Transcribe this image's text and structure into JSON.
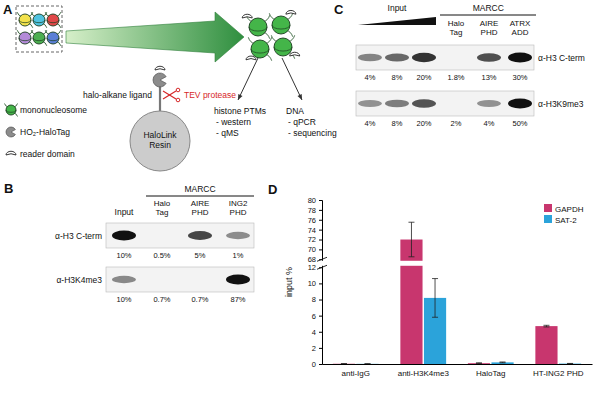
{
  "figure_a": {
    "label": "A",
    "legend": {
      "mononucleosome": "mononucleosome",
      "halotag": "HO₂-HaloTag",
      "reader": "reader domain"
    },
    "ligand": "halo-alkane ligand",
    "protease": "TEV protease",
    "resin": "HaloLink Resin",
    "outputs": [
      {
        "title": "histone PTMs",
        "items": [
          "- western",
          "- qMS"
        ]
      },
      {
        "title": "DNA",
        "items": [
          "- qPCR",
          "- sequencing"
        ]
      }
    ]
  },
  "blot_b": {
    "label": "B",
    "input_header": "Input",
    "group_header": "MARCC",
    "lanes": [
      "Halo Tag",
      "AIRE PHD",
      "ING2 PHD"
    ],
    "rows": [
      {
        "antibody": "α-H3 C-term",
        "input_values": [
          10
        ],
        "input_labels": [
          "10%"
        ],
        "values": [
          0.5,
          5,
          1
        ],
        "value_labels": [
          "0.5%",
          "5%",
          "1%"
        ]
      },
      {
        "antibody": "α-H3K4me3",
        "input_values": [
          10
        ],
        "input_labels": [
          "10%"
        ],
        "values": [
          0.7,
          0.7,
          87
        ],
        "value_labels": [
          "0.7%",
          "0.7%",
          "87%"
        ]
      }
    ]
  },
  "blot_c": {
    "label": "C",
    "input_header": "Input",
    "group_header": "MARCC",
    "lanes": [
      "Halo Tag",
      "AIRE PHD",
      "ATRX ADD"
    ],
    "rows": [
      {
        "antibody": "α-H3 C-term",
        "input_values": [
          4,
          8,
          20
        ],
        "input_labels": [
          "4%",
          "8%",
          "20%"
        ],
        "values": [
          1.8,
          13,
          30
        ],
        "value_labels": [
          "1.8%",
          "13%",
          "30%"
        ]
      },
      {
        "antibody": "α-H3K9me3",
        "input_values": [
          4,
          8,
          20
        ],
        "input_labels": [
          "4%",
          "8%",
          "20%"
        ],
        "values": [
          2,
          4,
          50
        ],
        "value_labels": [
          "2%",
          "4%",
          "50%"
        ]
      }
    ]
  },
  "chart_data": {
    "type": "bar",
    "panel_label": "D",
    "y_label": "input %",
    "categories": [
      "anti-IgG",
      "anti-H3K4me3",
      "HaloTag",
      "HT-ING2 PHD"
    ],
    "series": [
      {
        "name": "GAPDH",
        "color": "#c8366e",
        "values": [
          0.03,
          72,
          0.1,
          4.7
        ],
        "errors": [
          0.02,
          3.5,
          0.05,
          0.1
        ]
      },
      {
        "name": "SAT-2",
        "color": "#2ba3da",
        "values": [
          0.02,
          8.2,
          0.2,
          0.05
        ],
        "errors": [
          0.01,
          2.4,
          0.05,
          0.02
        ]
      }
    ],
    "ylim": [
      0,
      80
    ],
    "yticks": [
      0,
      2,
      4,
      6,
      8,
      10,
      12,
      68,
      70,
      72,
      74,
      76,
      78,
      80
    ],
    "legend": "upper right"
  }
}
